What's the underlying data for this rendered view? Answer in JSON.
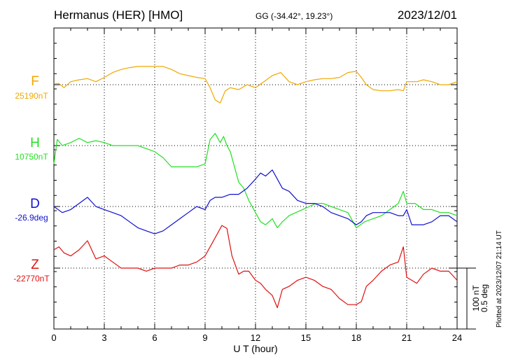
{
  "header": {
    "station": "Hermanus (HER)  [HMO]",
    "coords": "GG (-34.42°,  19.23°)",
    "date": "2023/12/01"
  },
  "scale_bar": {
    "nt_label": "100 nT",
    "deg_label": "0.5 deg"
  },
  "footer_note": "Plotted at 2023/12/07 21:14 UT",
  "colors": {
    "F": "#f0a800",
    "H": "#22e022",
    "D": "#1010d0",
    "Z": "#e01010"
  },
  "chart_data": {
    "type": "line",
    "xlabel": "U T (hour)",
    "xlim": [
      0,
      24
    ],
    "xticks": [
      "0",
      "3",
      "6",
      "9",
      "12",
      "15",
      "18",
      "21",
      "24"
    ],
    "units_per_div": "100 nT / 0.5 deg",
    "series": [
      {
        "name": "F",
        "baseline_label": "25190nT",
        "x": [
          0,
          0.3,
          0.6,
          1,
          1.5,
          2,
          2.5,
          3,
          3.5,
          4,
          4.5,
          5,
          5.5,
          6,
          6.5,
          7,
          7.5,
          8,
          8.5,
          9,
          9.3,
          9.6,
          9.9,
          10.2,
          10.5,
          11,
          11.5,
          12,
          12.5,
          13,
          13.5,
          14,
          14.5,
          15,
          15.5,
          16,
          16.5,
          17,
          17.5,
          18,
          18.3,
          18.6,
          19,
          19.5,
          20,
          20.5,
          20.8,
          21,
          21.3,
          21.6,
          22,
          22.5,
          23,
          23.5,
          24
        ],
        "y": [
          0.02,
          0.02,
          -0.05,
          0.05,
          0.08,
          0.1,
          0.05,
          0.12,
          0.2,
          0.25,
          0.28,
          0.3,
          0.3,
          0.3,
          0.3,
          0.25,
          0.18,
          0.15,
          0.12,
          0.1,
          -0.05,
          -0.25,
          -0.3,
          -0.1,
          -0.05,
          -0.08,
          0.0,
          -0.05,
          0.05,
          0.15,
          0.2,
          0.05,
          0.0,
          0.05,
          0.08,
          0.1,
          0.1,
          0.12,
          0.2,
          0.22,
          0.12,
          0.0,
          -0.08,
          -0.1,
          -0.1,
          -0.08,
          -0.1,
          0.05,
          0.05,
          0.05,
          0.08,
          0.05,
          0.0,
          0.0,
          0.05
        ]
      },
      {
        "name": "H",
        "baseline_label": "10750nT",
        "x": [
          0,
          0.2,
          0.5,
          1,
          1.5,
          2,
          2.5,
          3,
          3.5,
          4,
          4.5,
          5,
          5.5,
          6,
          6.5,
          7,
          7.5,
          8,
          8.5,
          9,
          9.3,
          9.6,
          9.9,
          10.1,
          10.3,
          10.5,
          10.8,
          11,
          11.3,
          11.6,
          12,
          12.3,
          12.6,
          13,
          13.3,
          13.6,
          14,
          14.4,
          14.8,
          15.2,
          15.6,
          16,
          16.5,
          17,
          17.5,
          18,
          18.5,
          19,
          19.5,
          20,
          20.5,
          20.8,
          21,
          21.5,
          22,
          22.5,
          23,
          23.5,
          24
        ],
        "y": [
          -0.3,
          0.1,
          0.0,
          0.05,
          0.12,
          0.05,
          0.08,
          0.05,
          0.0,
          0.0,
          0.0,
          0.0,
          -0.05,
          -0.1,
          -0.2,
          -0.35,
          -0.35,
          -0.35,
          -0.35,
          -0.3,
          0.1,
          0.2,
          0.05,
          0.15,
          0.0,
          -0.1,
          -0.4,
          -0.6,
          -0.7,
          -0.9,
          -1.1,
          -1.25,
          -1.3,
          -1.2,
          -1.35,
          -1.25,
          -1.15,
          -1.1,
          -1.05,
          -1.0,
          -0.95,
          -0.95,
          -1.0,
          -1.05,
          -1.1,
          -1.35,
          -1.25,
          -1.2,
          -1.15,
          -1.05,
          -0.95,
          -0.75,
          -0.95,
          -0.95,
          -1.05,
          -1.05,
          -1.1,
          -1.1,
          -1.15
        ]
      },
      {
        "name": "D",
        "baseline_label": "-26.9deg",
        "x": [
          0,
          0.5,
          1,
          1.5,
          2,
          2.5,
          3,
          3.5,
          4,
          4.5,
          5,
          5.5,
          6,
          6.5,
          7,
          7.5,
          8,
          8.5,
          9,
          9.3,
          9.6,
          10,
          10.5,
          11,
          11.5,
          12,
          12.3,
          12.6,
          13,
          13.3,
          13.6,
          14,
          14.5,
          15,
          15.5,
          16,
          16.5,
          17,
          17.5,
          18,
          18.3,
          18.6,
          19,
          19.5,
          20,
          20.5,
          20.8,
          21,
          21.3,
          21.6,
          22,
          22.5,
          23,
          23.5,
          24
        ],
        "y": [
          0.0,
          -0.1,
          -0.05,
          0.05,
          0.15,
          0.0,
          -0.05,
          -0.1,
          -0.15,
          -0.25,
          -0.35,
          -0.4,
          -0.45,
          -0.4,
          -0.3,
          -0.2,
          -0.1,
          0.0,
          -0.05,
          0.1,
          0.15,
          0.15,
          0.2,
          0.2,
          0.3,
          0.45,
          0.55,
          0.5,
          0.6,
          0.45,
          0.3,
          0.25,
          0.1,
          0.05,
          0.05,
          0.0,
          -0.1,
          -0.15,
          -0.2,
          -0.3,
          -0.25,
          -0.15,
          -0.1,
          -0.1,
          -0.1,
          -0.15,
          -0.15,
          -0.05,
          -0.3,
          -0.3,
          -0.3,
          -0.25,
          -0.15,
          -0.15,
          -0.25
        ]
      },
      {
        "name": "Z",
        "baseline_label": "-22770nT",
        "x": [
          0,
          0.3,
          0.6,
          1,
          1.5,
          2,
          2.5,
          3,
          3.5,
          4,
          4.5,
          5,
          5.5,
          6,
          6.5,
          7,
          7.5,
          8,
          8.5,
          9,
          9.5,
          10,
          10.3,
          10.6,
          11,
          11.3,
          11.6,
          12,
          12.3,
          12.6,
          13,
          13.3,
          13.6,
          14,
          14.5,
          15,
          15.5,
          16,
          16.5,
          17,
          17.5,
          18,
          18.3,
          18.6,
          19,
          19.5,
          20,
          20.5,
          20.8,
          21,
          21.3,
          21.6,
          22,
          22.5,
          23,
          23.5,
          24
        ],
        "y": [
          0.3,
          0.35,
          0.25,
          0.2,
          0.3,
          0.45,
          0.15,
          0.2,
          0.1,
          0.0,
          0.0,
          0.0,
          -0.05,
          0.0,
          0.0,
          0.0,
          0.05,
          0.05,
          0.1,
          0.2,
          0.45,
          0.7,
          0.65,
          0.2,
          -0.1,
          -0.05,
          -0.05,
          -0.2,
          -0.25,
          -0.35,
          -0.45,
          -0.65,
          -0.35,
          -0.3,
          -0.2,
          -0.15,
          -0.2,
          -0.3,
          -0.35,
          -0.5,
          -0.6,
          -0.6,
          -0.55,
          -0.3,
          -0.2,
          -0.05,
          0.05,
          0.1,
          0.35,
          -0.15,
          -0.2,
          -0.25,
          -0.1,
          0.0,
          -0.05,
          -0.05,
          -0.2
        ]
      }
    ]
  }
}
